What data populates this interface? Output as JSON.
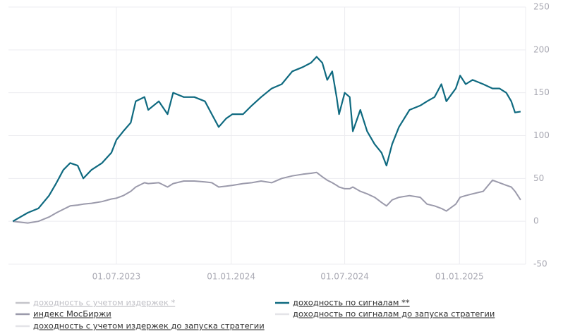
{
  "chart_data": {
    "type": "line",
    "x": [
      "2023-01-16",
      "2023-02-09",
      "2023-02-26",
      "2023-03-15",
      "2023-03-27",
      "2023-04-07",
      "2023-04-18",
      "2023-04-30",
      "2023-05-09",
      "2023-05-22",
      "2023-06-08",
      "2023-06-23",
      "2023-07-01",
      "2023-07-12",
      "2023-07-24",
      "2023-08-01",
      "2023-08-15",
      "2023-08-21",
      "2023-09-07",
      "2023-09-21",
      "2023-09-30",
      "2023-10-17",
      "2023-11-03",
      "2023-11-20",
      "2023-12-01",
      "2023-12-12",
      "2023-12-24",
      "2024-01-03",
      "2024-01-20",
      "2024-02-03",
      "2024-02-18",
      "2024-03-06",
      "2024-03-22",
      "2024-04-08",
      "2024-04-25",
      "2024-05-08",
      "2024-05-17",
      "2024-05-26",
      "2024-06-03",
      "2024-06-11",
      "2024-06-18",
      "2024-06-22",
      "2024-07-01",
      "2024-07-09",
      "2024-07-14",
      "2024-07-26",
      "2024-08-06",
      "2024-08-18",
      "2024-08-29",
      "2024-09-06",
      "2024-09-15",
      "2024-09-26",
      "2024-10-13",
      "2024-10-30",
      "2024-11-10",
      "2024-11-22",
      "2024-12-03",
      "2024-12-11",
      "2024-12-26",
      "2025-01-02",
      "2025-01-11",
      "2025-01-22",
      "2025-02-08",
      "2025-02-23",
      "2025-03-06",
      "2025-03-17",
      "2025-03-25",
      "2025-03-31",
      "2025-04-09"
    ],
    "series": [
      {
        "name": "индекс МосБиржи",
        "color": "#9b9aab",
        "values": [
          0,
          -2,
          0,
          5,
          10,
          14,
          18,
          19,
          20,
          21,
          23,
          26,
          27,
          30,
          35,
          40,
          45,
          44,
          45,
          40,
          44,
          47,
          47,
          46,
          45,
          40,
          41,
          42,
          44,
          45,
          47,
          45,
          50,
          53,
          55,
          56,
          57,
          52,
          48,
          45,
          42,
          40,
          38,
          38,
          40,
          35,
          32,
          28,
          22,
          18,
          25,
          28,
          30,
          28,
          20,
          18,
          15,
          12,
          20,
          28,
          30,
          32,
          35,
          48,
          45,
          42,
          40,
          35,
          25
        ]
      },
      {
        "name": "доходность по сигналам **",
        "color": "#0f6a80",
        "values": [
          0,
          10,
          15,
          30,
          45,
          60,
          68,
          65,
          50,
          60,
          68,
          80,
          95,
          105,
          115,
          140,
          145,
          130,
          140,
          125,
          150,
          145,
          145,
          140,
          125,
          110,
          120,
          125,
          125,
          135,
          145,
          155,
          160,
          175,
          180,
          185,
          192,
          185,
          165,
          175,
          145,
          125,
          150,
          145,
          105,
          130,
          105,
          90,
          80,
          65,
          90,
          110,
          130,
          135,
          140,
          145,
          160,
          140,
          155,
          170,
          160,
          165,
          160,
          155,
          155,
          150,
          140,
          127,
          128
        ]
      }
    ],
    "hidden_series": [
      {
        "name": "доходность с учетом издержек *",
        "color": "#c4c4ca"
      },
      {
        "name": "доходность с учетом издержек до запуска стратегии",
        "color": "#e4e4e8"
      },
      {
        "name": "доходность по сигналам до запуска стратегии",
        "color": "#e4e4e8"
      }
    ],
    "xlim": [
      "2023-01-09",
      "2025-04-17"
    ],
    "xticks": [
      {
        "value": "2023-07-01",
        "label": "01.07.2023"
      },
      {
        "value": "2024-01-01",
        "label": "01.01.2024"
      },
      {
        "value": "2024-07-01",
        "label": "01.07.2024"
      },
      {
        "value": "2025-01-01",
        "label": "01.01.2025"
      }
    ],
    "ylim": [
      -50,
      250
    ],
    "yticks": [
      -50,
      0,
      50,
      100,
      150,
      200,
      250
    ],
    "grid": true
  }
}
